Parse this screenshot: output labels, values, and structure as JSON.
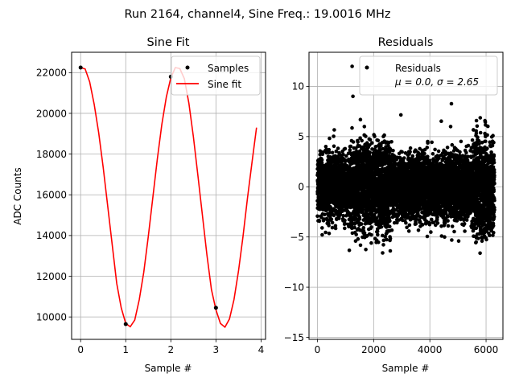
{
  "suptitle": "Run 2164, channel4, Sine Freq.: 19.0016 MHz",
  "chart_data": [
    {
      "type": "line",
      "title": "Sine Fit",
      "xlabel": "Sample #",
      "ylabel": "ADC Counts",
      "xlim": [
        -0.2,
        4.1
      ],
      "ylim": [
        8900,
        23000
      ],
      "xticks": [
        0,
        1,
        2,
        3,
        4
      ],
      "yticks": [
        10000,
        12000,
        14000,
        16000,
        18000,
        20000,
        22000
      ],
      "grid": true,
      "legend": {
        "location": "upper right",
        "entries": [
          "Samples",
          "Sine fit"
        ]
      },
      "series": [
        {
          "name": "Samples",
          "kind": "scatter",
          "color": "#000000",
          "x": [
            0,
            1,
            2,
            3
          ],
          "y": [
            22250,
            9650,
            21800,
            10450
          ]
        },
        {
          "name": "Sine fit",
          "kind": "line",
          "color": "#ff0000",
          "x": [
            0,
            0.1,
            0.2,
            0.3,
            0.4,
            0.5,
            0.6,
            0.7,
            0.8,
            0.9,
            1.0,
            1.1,
            1.2,
            1.3,
            1.4,
            1.5,
            1.6,
            1.7,
            1.8,
            1.9,
            2.0,
            2.1,
            2.2,
            2.3,
            2.4,
            2.5,
            2.6,
            2.7,
            2.8,
            2.9,
            3.0,
            3.1,
            3.2,
            3.3,
            3.4,
            3.5,
            3.6,
            3.7,
            3.8,
            3.9
          ],
          "y": [
            22250,
            22180,
            21550,
            20450,
            19050,
            17350,
            15450,
            13550,
            11650,
            10450,
            9680,
            9520,
            9850,
            10850,
            12200,
            13950,
            15850,
            17750,
            19450,
            20800,
            21750,
            22250,
            22200,
            21700,
            20500,
            18850,
            16950,
            15000,
            13050,
            11350,
            10350,
            9680,
            9500,
            9900,
            10850,
            12250,
            13950,
            15850,
            17600,
            19300
          ]
        }
      ]
    },
    {
      "type": "scatter",
      "title": "Residuals",
      "xlabel": "Sample #",
      "ylabel": "",
      "xlim": [
        -300,
        6600
      ],
      "ylim": [
        -15.2,
        13.4
      ],
      "xticks": [
        0,
        2000,
        4000,
        6000
      ],
      "yticks": [
        -15,
        -10,
        -5,
        0,
        5,
        10
      ],
      "grid": true,
      "legend": {
        "location": "upper right",
        "entries": [
          "Residuals",
          "μ = 0.0, σ = 2.65"
        ]
      },
      "stats": {
        "mu": 0.0,
        "sigma": 2.65
      },
      "series": [
        {
          "name": "Residuals",
          "color": "#000000",
          "n_points": 6400,
          "x_range": [
            0,
            6300
          ]
        }
      ]
    }
  ]
}
